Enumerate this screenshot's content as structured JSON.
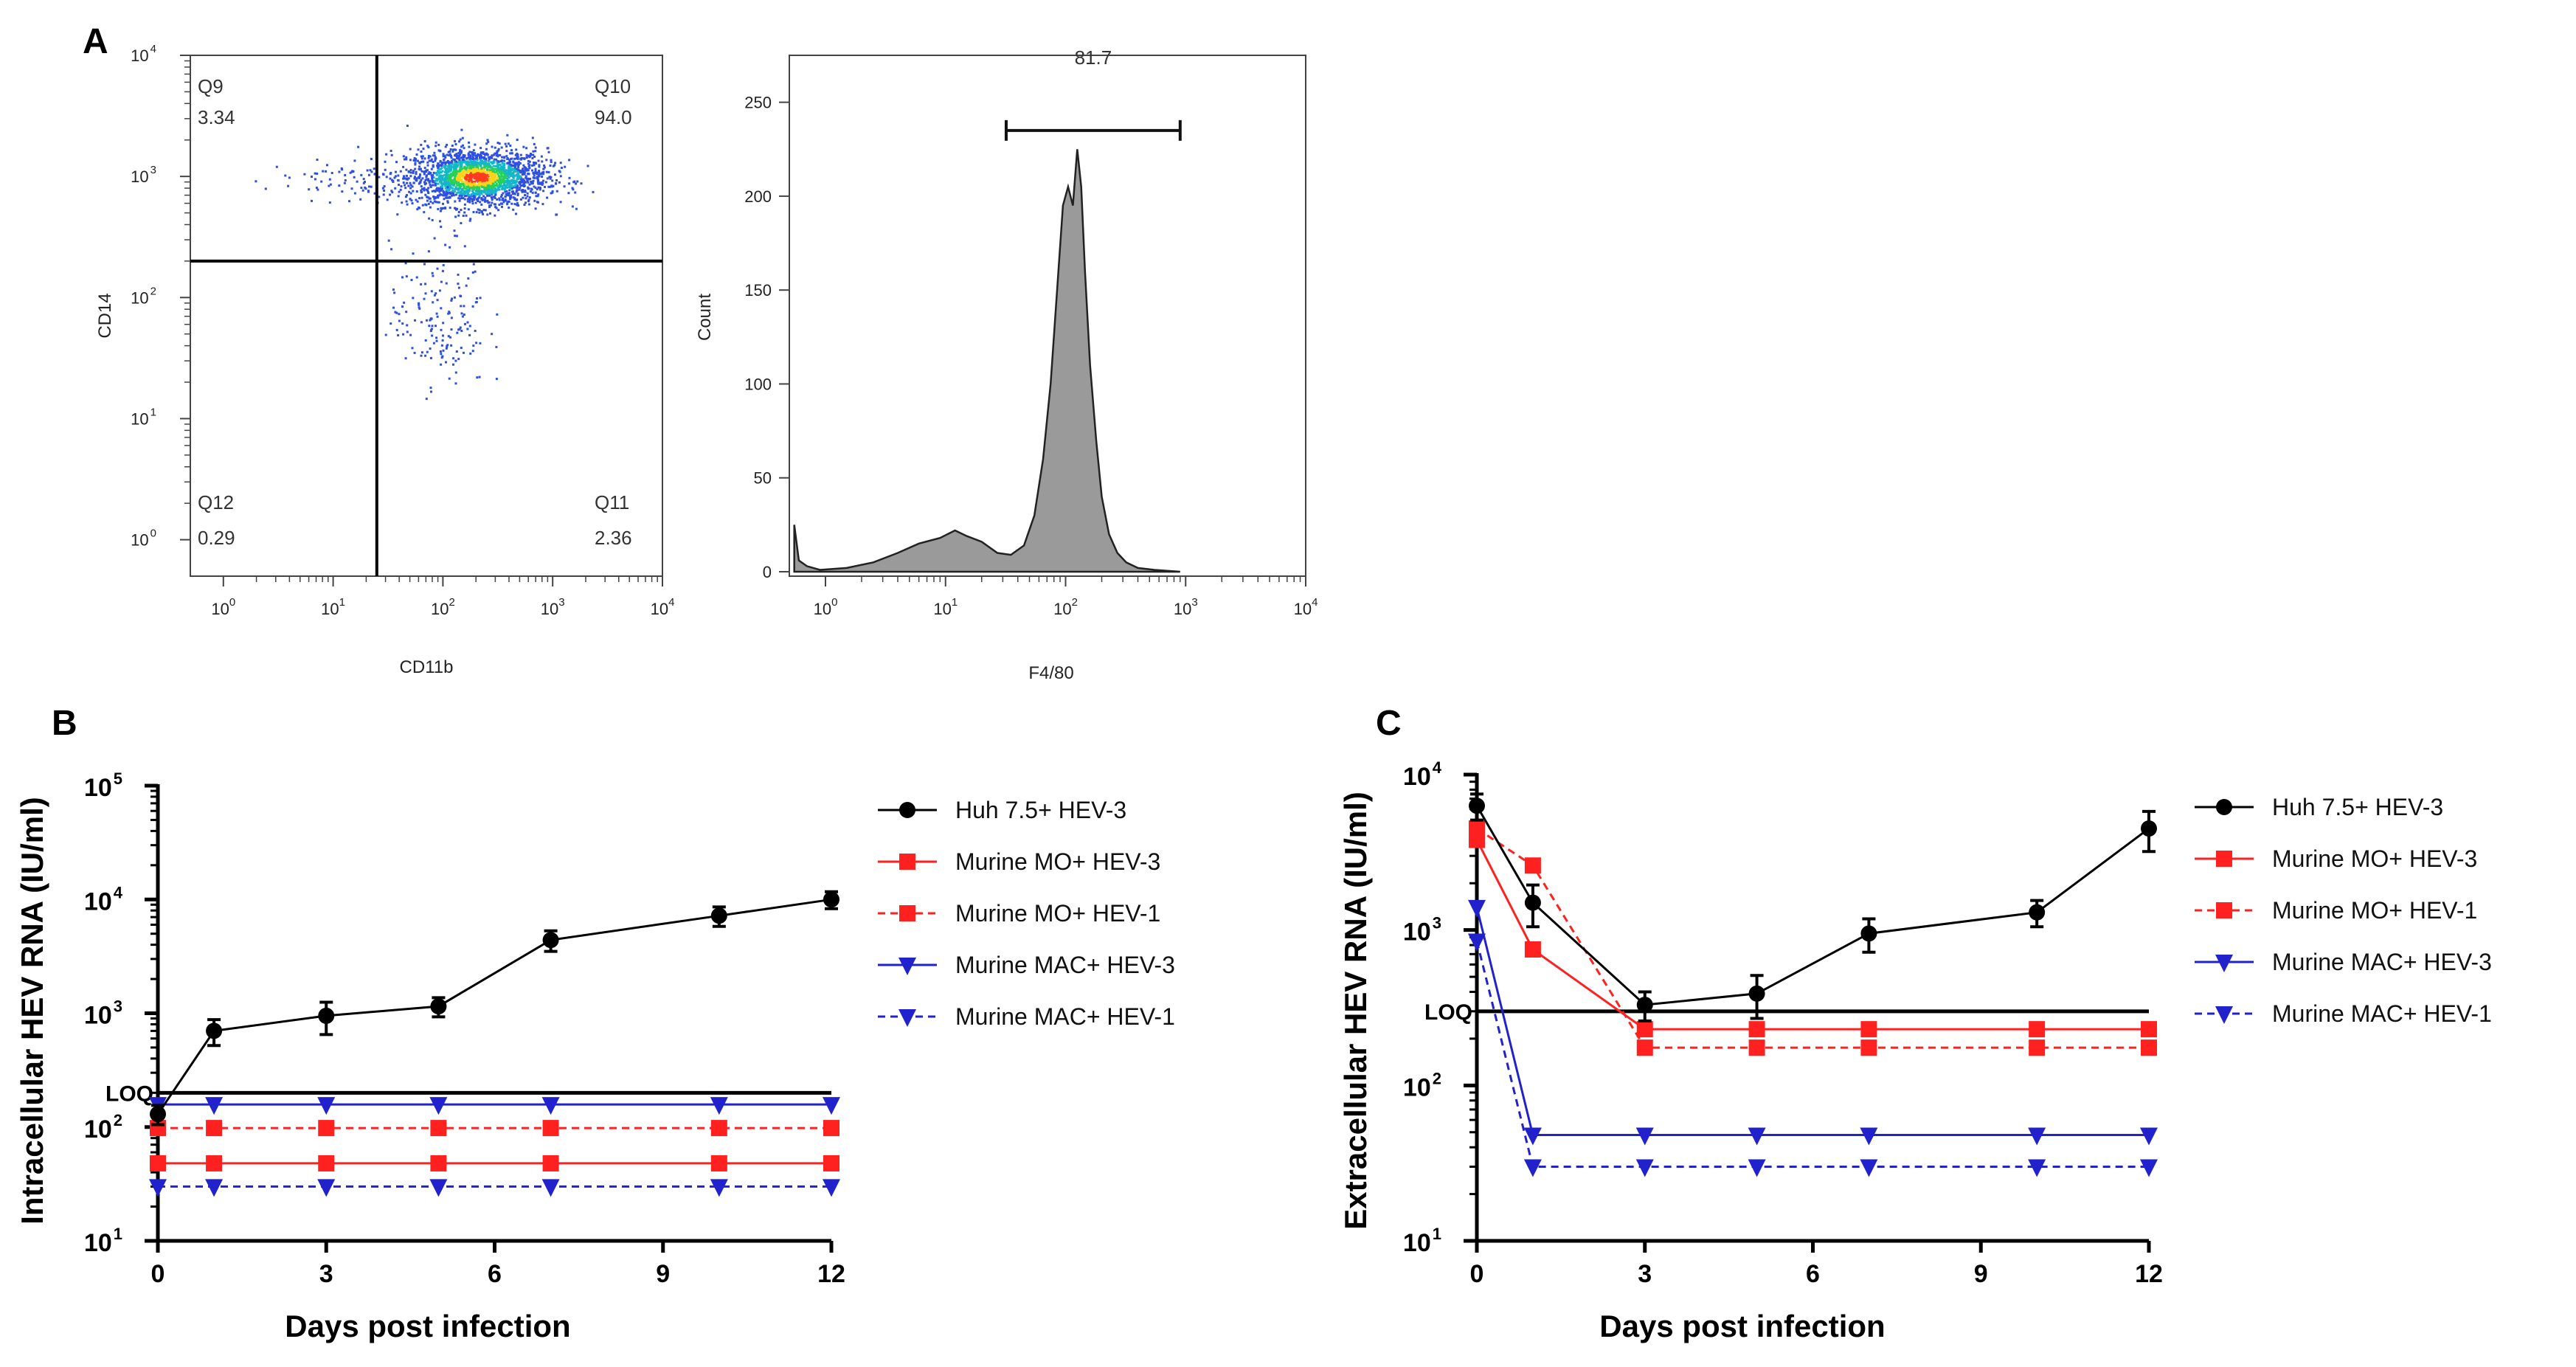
{
  "colors": {
    "black": "#000000",
    "red": "#ff2020",
    "blue": "#2222cc",
    "histogram_fill": "#9a9a9a"
  },
  "chart_data": [
    {
      "panel": "A",
      "type": "scatter",
      "subtype": "flow-cytometry-dot-plot",
      "xlabel": "CD11b",
      "ylabel": "CD14",
      "xscale": "log",
      "yscale": "log",
      "xlim": [
        0.5,
        10000
      ],
      "ylim": [
        0.5,
        10000
      ],
      "xticks": [
        {
          "base": "10",
          "exp": "0"
        },
        {
          "base": "10",
          "exp": "1"
        },
        {
          "base": "10",
          "exp": "2"
        },
        {
          "base": "10",
          "exp": "3"
        },
        {
          "base": "10",
          "exp": "4"
        }
      ],
      "yticks": [
        {
          "base": "10",
          "exp": "0"
        },
        {
          "base": "10",
          "exp": "1"
        },
        {
          "base": "10",
          "exp": "2"
        },
        {
          "base": "10",
          "exp": "3"
        },
        {
          "base": "10",
          "exp": "4"
        }
      ],
      "gate_x": 25,
      "gate_y": 200,
      "quadrants": [
        {
          "name": "Q9",
          "value": "3.34",
          "corner": "top-left"
        },
        {
          "name": "Q10",
          "value": "94.0",
          "corner": "top-right"
        },
        {
          "name": "Q12",
          "value": "0.29",
          "corner": "bottom-left"
        },
        {
          "name": "Q11",
          "value": "2.36",
          "corner": "bottom-right"
        }
      ],
      "populations": [
        {
          "name": "main",
          "center": [
            200,
            1000
          ],
          "spread": [
            0.32,
            0.12
          ],
          "count": 2200
        },
        {
          "name": "left-tail",
          "center": [
            12,
            950
          ],
          "spread": [
            0.35,
            0.08
          ],
          "count": 70
        },
        {
          "name": "lower",
          "center": [
            90,
            70
          ],
          "spread": [
            0.22,
            0.3
          ],
          "count": 170
        }
      ]
    },
    {
      "panel": "A",
      "type": "area",
      "subtype": "histogram",
      "xlabel": "F4/80",
      "ylabel": "Count",
      "xscale": "log",
      "xlim": [
        0.5,
        10000
      ],
      "ylim": [
        0,
        275
      ],
      "yticks": [
        0,
        50,
        100,
        150,
        200,
        250
      ],
      "xticks": [
        {
          "base": "10",
          "exp": "0"
        },
        {
          "base": "10",
          "exp": "1"
        },
        {
          "base": "10",
          "exp": "2"
        },
        {
          "base": "10",
          "exp": "3"
        },
        {
          "base": "10",
          "exp": "4"
        }
      ],
      "gate": {
        "from": 32,
        "to": 900,
        "y": 235,
        "label": "81.7"
      },
      "x": [
        0.55,
        0.6,
        0.7,
        0.9,
        1.5,
        2.5,
        4,
        6,
        9,
        12,
        15,
        20,
        27,
        35,
        45,
        55,
        65,
        75,
        85,
        95,
        105,
        115,
        125,
        135,
        145,
        160,
        180,
        200,
        230,
        270,
        320,
        400,
        550,
        900
      ],
      "y": [
        25,
        6,
        3,
        1,
        2,
        5,
        10,
        15,
        18,
        22,
        19,
        16,
        10,
        9,
        14,
        30,
        60,
        100,
        150,
        195,
        205,
        195,
        225,
        205,
        160,
        110,
        70,
        40,
        20,
        10,
        5,
        2,
        1,
        0
      ]
    },
    {
      "panel": "B",
      "type": "line",
      "xlabel": "Days post infection",
      "ylabel": "Intracellular HEV RNA (IU/ml)",
      "yscale": "log",
      "xlim": [
        0,
        12
      ],
      "ylim": [
        10,
        100000
      ],
      "xticks": [
        0,
        3,
        6,
        9,
        12
      ],
      "yticks": [
        {
          "base": "10",
          "exp": "1"
        },
        {
          "base": "10",
          "exp": "2"
        },
        {
          "base": "10",
          "exp": "3"
        },
        {
          "base": "10",
          "exp": "4"
        },
        {
          "base": "10",
          "exp": "5"
        }
      ],
      "loq": {
        "value": 200,
        "label": "LOQ"
      },
      "series": [
        {
          "name": "Huh 7.5+ HEV-3",
          "color": "#000000",
          "marker": "circle",
          "dash": "solid",
          "x": [
            0,
            1,
            3,
            5,
            7,
            10,
            12
          ],
          "y": [
            130,
            700,
            950,
            1150,
            4400,
            7200,
            10000
          ],
          "err": [
            25,
            180,
            300,
            220,
            900,
            1400,
            1700
          ]
        },
        {
          "name": "Murine MO+ HEV-3",
          "color": "#ff2020",
          "marker": "square",
          "dash": "solid",
          "x": [
            0,
            1,
            3,
            5,
            7,
            10,
            12
          ],
          "y": [
            48,
            48,
            48,
            48,
            48,
            48,
            48
          ]
        },
        {
          "name": "Murine MO+ HEV-1",
          "color": "#ff2020",
          "marker": "square",
          "dash": "dashed",
          "x": [
            0,
            1,
            3,
            5,
            7,
            10,
            12
          ],
          "y": [
            98,
            98,
            98,
            98,
            98,
            98,
            98
          ]
        },
        {
          "name": "Murine MAC+ HEV-3",
          "color": "#2222cc",
          "marker": "triangle-down",
          "dash": "solid",
          "x": [
            0,
            1,
            3,
            5,
            7,
            10,
            12
          ],
          "y": [
            158,
            158,
            158,
            158,
            158,
            158,
            158
          ]
        },
        {
          "name": "Murine MAC+ HEV-1",
          "color": "#2222cc",
          "marker": "triangle-down",
          "dash": "dashed",
          "x": [
            0,
            1,
            3,
            5,
            7,
            10,
            12
          ],
          "y": [
            30,
            30,
            30,
            30,
            30,
            30,
            30
          ]
        }
      ]
    },
    {
      "panel": "C",
      "type": "line",
      "xlabel": "Days post infection",
      "ylabel": "Extracellular HEV RNA (IU/ml)",
      "yscale": "log",
      "xlim": [
        0,
        12
      ],
      "ylim": [
        10,
        10000
      ],
      "xticks": [
        0,
        3,
        6,
        9,
        12
      ],
      "yticks": [
        {
          "base": "10",
          "exp": "1"
        },
        {
          "base": "10",
          "exp": "2"
        },
        {
          "base": "10",
          "exp": "3"
        },
        {
          "base": "10",
          "exp": "4"
        }
      ],
      "loq": {
        "value": 300,
        "label": "LOQ"
      },
      "series": [
        {
          "name": "Huh 7.5+ HEV-3",
          "color": "#000000",
          "marker": "circle",
          "dash": "solid",
          "x": [
            0,
            1,
            3,
            5,
            7,
            10,
            12
          ],
          "y": [
            6300,
            1500,
            330,
            390,
            950,
            1300,
            4500
          ],
          "err": [
            1200,
            450,
            70,
            120,
            230,
            250,
            1300
          ]
        },
        {
          "name": "Murine MO+ HEV-3",
          "color": "#ff2020",
          "marker": "square",
          "dash": "solid",
          "x": [
            0,
            1,
            3,
            5,
            7,
            10,
            12
          ],
          "y": [
            3800,
            750,
            230,
            230,
            230,
            230,
            230
          ]
        },
        {
          "name": "Murine MO+ HEV-1",
          "color": "#ff2020",
          "marker": "square",
          "dash": "dashed",
          "x": [
            0,
            1,
            3,
            5,
            7,
            10,
            12
          ],
          "y": [
            4500,
            2600,
            175,
            175,
            175,
            175,
            175
          ]
        },
        {
          "name": "Murine MAC+ HEV-3",
          "color": "#2222cc",
          "marker": "triangle-down",
          "dash": "solid",
          "x": [
            0,
            1,
            3,
            5,
            7,
            10,
            12
          ],
          "y": [
            1400,
            48,
            48,
            48,
            48,
            48,
            48
          ]
        },
        {
          "name": "Murine MAC+ HEV-1",
          "color": "#2222cc",
          "marker": "triangle-down",
          "dash": "dashed",
          "x": [
            0,
            1,
            3,
            5,
            7,
            10,
            12
          ],
          "y": [
            850,
            30,
            30,
            30,
            30,
            30,
            30
          ]
        }
      ]
    }
  ]
}
